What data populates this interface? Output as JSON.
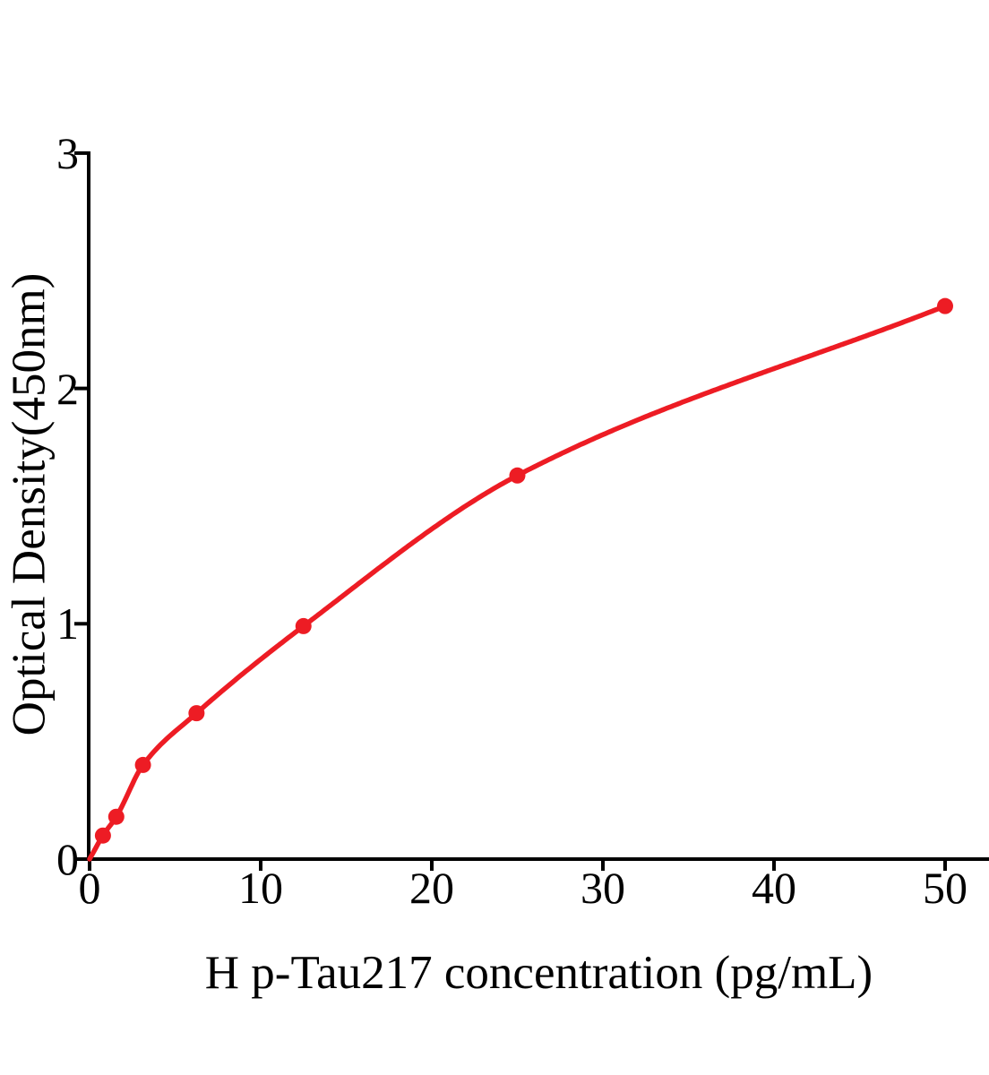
{
  "figure": {
    "background_color": "#ffffff",
    "text_color": "#000000"
  },
  "chart_data": {
    "type": "scatter",
    "title": "",
    "xlabel": "H p-Tau217 concentration (pg/mL)",
    "ylabel": "Optical Density(450nm)",
    "x": [
      0.78,
      1.56,
      3.12,
      6.25,
      12.5,
      25,
      50
    ],
    "y": [
      0.1,
      0.18,
      0.4,
      0.62,
      0.99,
      1.63,
      2.35
    ],
    "fit_curve": {
      "present": true,
      "starts_at_origin": true,
      "shape": "smooth saturating (4PL-like) through all points, ending at last point"
    },
    "x_ticks": [
      "0",
      "10",
      "20",
      "30",
      "40",
      "50"
    ],
    "y_ticks": [
      "0",
      "1",
      "2",
      "3"
    ],
    "xlim": [
      0,
      52.5
    ],
    "ylim": [
      0,
      3
    ],
    "grid": false,
    "legend": "none",
    "series_color": "#ED1C24",
    "axis_color": "#000000",
    "marker": "filled-circle"
  }
}
